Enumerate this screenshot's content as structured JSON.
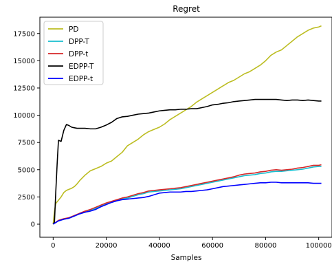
{
  "chart_data": {
    "type": "line",
    "title": "Regret",
    "xlabel": "Samples",
    "ylabel": "",
    "xlim": [
      -5000,
      105000
    ],
    "ylim": [
      -1200,
      19000
    ],
    "xticks": [
      0,
      20000,
      40000,
      60000,
      80000,
      100000
    ],
    "yticks": [
      0,
      2500,
      5000,
      7500,
      10000,
      12500,
      15000,
      17500
    ],
    "grid": false,
    "legend_position": "top-left",
    "series": [
      {
        "name": "PD",
        "color": "#bcbd22",
        "x": [
          0,
          500,
          1000,
          2000,
          3000,
          4000,
          5000,
          6000,
          7000,
          8000,
          9000,
          10000,
          12000,
          14000,
          16000,
          18000,
          20000,
          22000,
          24000,
          26000,
          28000,
          30000,
          32000,
          34000,
          36000,
          38000,
          40000,
          42000,
          44000,
          46000,
          48000,
          50000,
          52000,
          54000,
          56000,
          58000,
          60000,
          62000,
          64000,
          66000,
          68000,
          70000,
          72000,
          74000,
          76000,
          78000,
          80000,
          82000,
          84000,
          86000,
          88000,
          90000,
          92000,
          94000,
          96000,
          98000,
          100000,
          101000
        ],
        "y": [
          0,
          1200,
          1900,
          2200,
          2500,
          2900,
          3100,
          3200,
          3300,
          3450,
          3700,
          4000,
          4500,
          4900,
          5100,
          5300,
          5600,
          5800,
          6200,
          6600,
          7200,
          7500,
          7800,
          8200,
          8500,
          8700,
          8900,
          9200,
          9600,
          9900,
          10200,
          10500,
          10800,
          11200,
          11500,
          11800,
          12100,
          12400,
          12700,
          13000,
          13200,
          13500,
          13800,
          14000,
          14300,
          14600,
          15000,
          15500,
          15800,
          16000,
          16400,
          16800,
          17200,
          17500,
          17800,
          18000,
          18100,
          18200
        ]
      },
      {
        "name": "DPP-T",
        "color": "#17becf",
        "x": [
          0,
          2000,
          4000,
          6000,
          8000,
          10000,
          12000,
          14000,
          16000,
          18000,
          20000,
          22000,
          24000,
          26000,
          28000,
          30000,
          32000,
          34000,
          36000,
          38000,
          40000,
          42000,
          44000,
          46000,
          48000,
          50000,
          52000,
          54000,
          56000,
          58000,
          60000,
          62000,
          64000,
          66000,
          68000,
          70000,
          72000,
          74000,
          76000,
          78000,
          80000,
          82000,
          84000,
          86000,
          88000,
          90000,
          92000,
          94000,
          96000,
          98000,
          100000,
          101000
        ],
        "y": [
          0,
          300,
          450,
          550,
          750,
          950,
          1100,
          1250,
          1450,
          1650,
          1850,
          2000,
          2150,
          2300,
          2400,
          2550,
          2700,
          2800,
          2950,
          3000,
          3050,
          3100,
          3150,
          3200,
          3250,
          3350,
          3450,
          3550,
          3650,
          3750,
          3850,
          3950,
          4050,
          4150,
          4250,
          4350,
          4450,
          4500,
          4550,
          4650,
          4700,
          4800,
          4850,
          4850,
          4900,
          4950,
          5000,
          5050,
          5150,
          5250,
          5300,
          5300
        ]
      },
      {
        "name": "DPP-t",
        "color": "#d62728",
        "x": [
          0,
          2000,
          4000,
          6000,
          8000,
          10000,
          12000,
          14000,
          16000,
          18000,
          20000,
          22000,
          24000,
          26000,
          28000,
          30000,
          32000,
          34000,
          36000,
          38000,
          40000,
          42000,
          44000,
          46000,
          48000,
          50000,
          52000,
          54000,
          56000,
          58000,
          60000,
          62000,
          64000,
          66000,
          68000,
          70000,
          72000,
          74000,
          76000,
          78000,
          80000,
          82000,
          84000,
          86000,
          88000,
          90000,
          92000,
          94000,
          96000,
          98000,
          100000,
          101000
        ],
        "y": [
          0,
          350,
          500,
          600,
          800,
          1000,
          1200,
          1350,
          1550,
          1750,
          1950,
          2100,
          2250,
          2400,
          2500,
          2650,
          2800,
          2900,
          3050,
          3100,
          3150,
          3200,
          3250,
          3300,
          3350,
          3450,
          3550,
          3650,
          3750,
          3850,
          3950,
          4050,
          4150,
          4250,
          4350,
          4500,
          4600,
          4650,
          4700,
          4800,
          4850,
          4950,
          5000,
          4950,
          5000,
          5050,
          5150,
          5200,
          5300,
          5400,
          5400,
          5450
        ]
      },
      {
        "name": "EDPP-T",
        "color": "#000000",
        "x": [
          0,
          500,
          1000,
          1500,
          2000,
          3000,
          4000,
          5000,
          6000,
          7000,
          8000,
          9000,
          10000,
          12000,
          14000,
          16000,
          18000,
          20000,
          22000,
          24000,
          26000,
          28000,
          30000,
          32000,
          34000,
          36000,
          38000,
          40000,
          42000,
          44000,
          46000,
          48000,
          50000,
          52000,
          54000,
          56000,
          58000,
          60000,
          62000,
          64000,
          66000,
          68000,
          70000,
          72000,
          74000,
          76000,
          78000,
          80000,
          82000,
          84000,
          86000,
          88000,
          90000,
          92000,
          94000,
          96000,
          98000,
          100000,
          101000
        ],
        "y": [
          0,
          200,
          3000,
          5500,
          7700,
          7600,
          8600,
          9150,
          9050,
          8900,
          8850,
          8800,
          8800,
          8800,
          8750,
          8750,
          8900,
          9100,
          9350,
          9700,
          9850,
          9900,
          10000,
          10100,
          10150,
          10200,
          10300,
          10400,
          10450,
          10500,
          10500,
          10550,
          10550,
          10600,
          10600,
          10700,
          10800,
          10950,
          11000,
          11100,
          11150,
          11250,
          11300,
          11350,
          11400,
          11450,
          11450,
          11450,
          11450,
          11450,
          11400,
          11350,
          11400,
          11400,
          11350,
          11400,
          11350,
          11300,
          11300
        ]
      },
      {
        "name": "EDPP-t",
        "color": "#0000ff",
        "x": [
          0,
          2000,
          4000,
          6000,
          8000,
          10000,
          12000,
          14000,
          16000,
          18000,
          20000,
          22000,
          24000,
          26000,
          28000,
          30000,
          32000,
          34000,
          36000,
          38000,
          40000,
          42000,
          44000,
          46000,
          48000,
          50000,
          52000,
          54000,
          56000,
          58000,
          60000,
          62000,
          64000,
          66000,
          68000,
          70000,
          72000,
          74000,
          76000,
          78000,
          80000,
          82000,
          84000,
          86000,
          88000,
          90000,
          92000,
          94000,
          96000,
          98000,
          100000,
          101000
        ],
        "y": [
          0,
          300,
          450,
          550,
          750,
          950,
          1100,
          1200,
          1350,
          1600,
          1800,
          2000,
          2150,
          2250,
          2300,
          2350,
          2400,
          2450,
          2550,
          2700,
          2850,
          2900,
          2950,
          2950,
          2950,
          3000,
          3000,
          3050,
          3100,
          3150,
          3250,
          3350,
          3450,
          3500,
          3550,
          3600,
          3650,
          3700,
          3750,
          3800,
          3800,
          3850,
          3850,
          3800,
          3800,
          3800,
          3800,
          3800,
          3800,
          3750,
          3750,
          3750
        ]
      }
    ]
  }
}
